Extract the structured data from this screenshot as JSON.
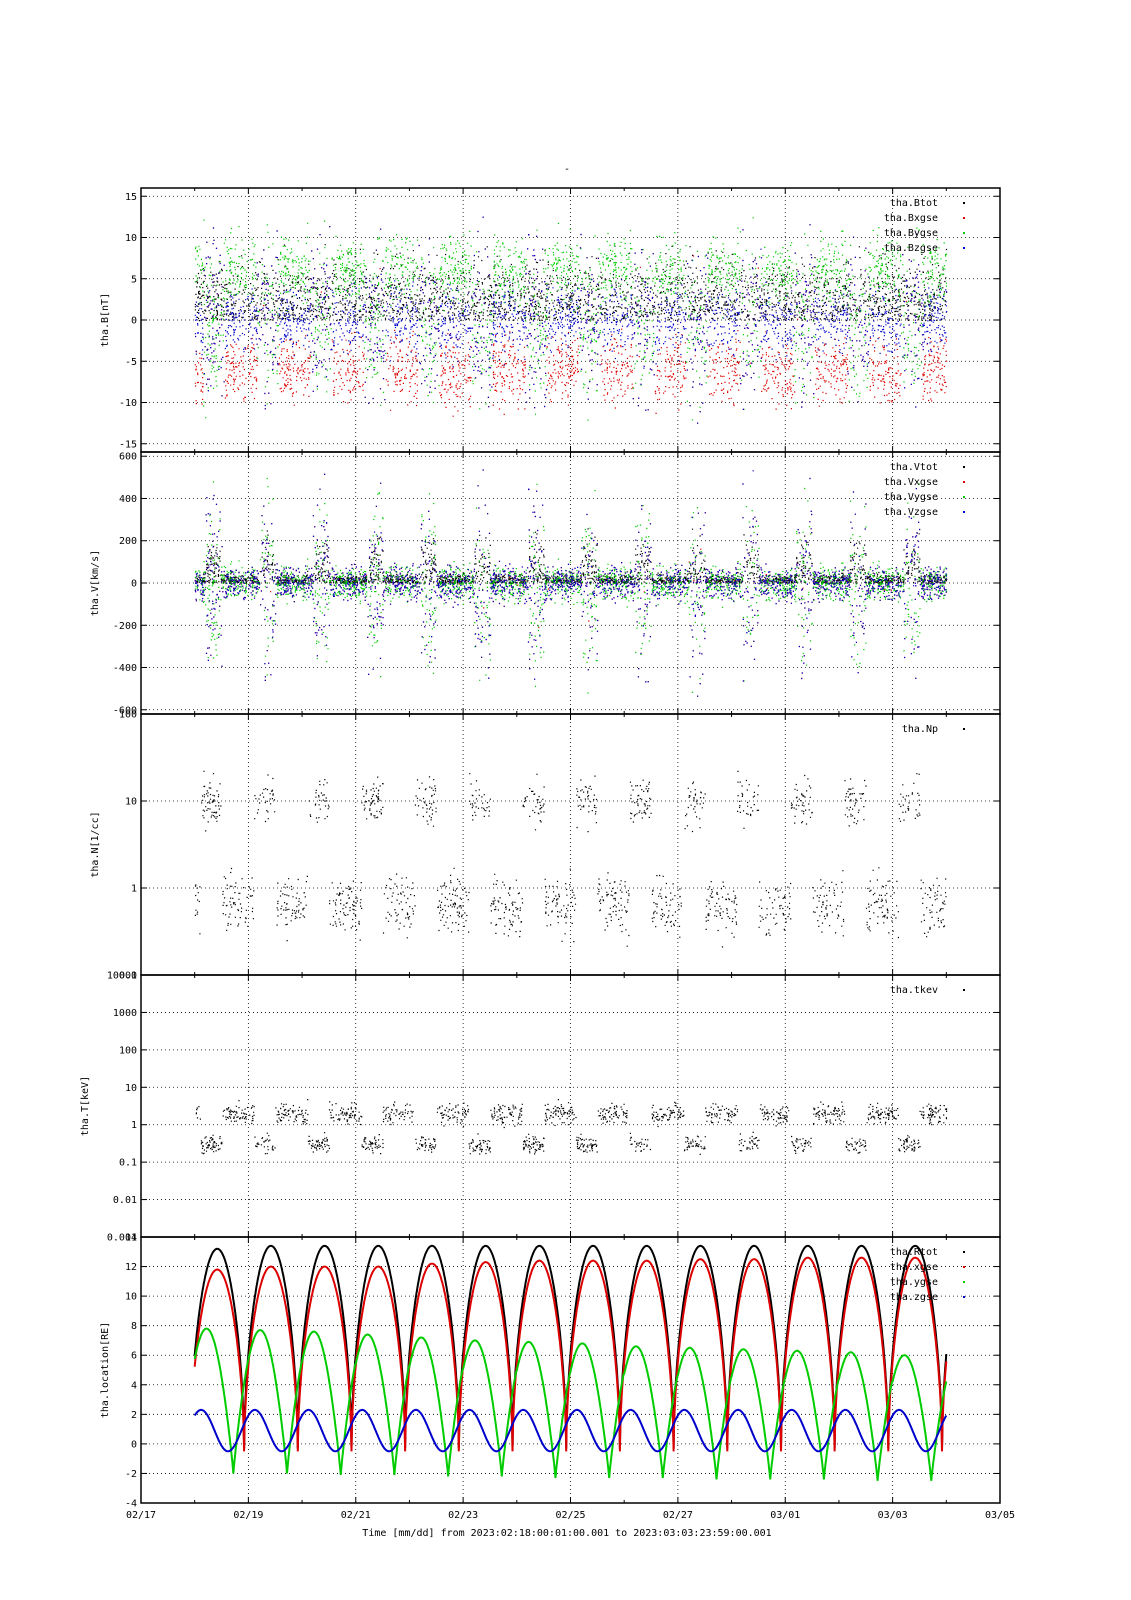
{
  "title": "-",
  "footer": "Time [mm/dd]  from 2023:02:18:00:01:00.001  to  2023:03:03:23:59:00.001",
  "x_ticks": [
    "02/17",
    "02/19",
    "02/21",
    "02/23",
    "02/25",
    "02/27",
    "03/01",
    "03/03",
    "03/05"
  ],
  "colors": {
    "black": "#000000",
    "red": "#dd0000",
    "green": "#00cc00",
    "blue": "#0000cc",
    "grid": "#000000"
  },
  "chart_data": [
    {
      "type": "scatter",
      "ylabel": "tha.B[nT]",
      "ylim": [
        -16,
        16
      ],
      "yscale": "linear",
      "yticks": [
        -15,
        -10,
        -5,
        0,
        5,
        10,
        15
      ],
      "ytick_labels": [
        "-15",
        "-10",
        "-5",
        "0",
        "5",
        "10",
        "15"
      ],
      "legend": [
        "tha.Btot",
        "tha.Bxgse",
        "tha.Bygse",
        "tha.Bzgse"
      ],
      "series_colors": [
        "#000000",
        "#dd0000",
        "#00cc00",
        "#0000cc"
      ]
    },
    {
      "type": "scatter",
      "ylabel": "tha.V[km/s]",
      "ylim": [
        -620,
        620
      ],
      "yscale": "linear",
      "yticks": [
        -600,
        -400,
        -200,
        0,
        200,
        400,
        600
      ],
      "ytick_labels": [
        "-600",
        "-400",
        "-200",
        "0",
        "200",
        "400",
        "600"
      ],
      "legend": [
        "tha.Vtot",
        "tha.Vxgse",
        "tha.Vygse",
        "tha.Vzgse"
      ],
      "series_colors": [
        "#000000",
        "#dd0000",
        "#00cc00",
        "#0000cc"
      ]
    },
    {
      "type": "scatter",
      "ylabel": "tha.N[1/cc]",
      "ylim": [
        0.1,
        100
      ],
      "yscale": "log",
      "yticks": [
        0.1,
        1,
        10,
        100
      ],
      "ytick_labels": [
        "0.1",
        "1",
        "10",
        "100"
      ],
      "legend": [
        "tha.Np"
      ],
      "series_colors": [
        "#000000"
      ]
    },
    {
      "type": "scatter",
      "ylabel": "tha.T[keV]",
      "ylim": [
        0.001,
        10000
      ],
      "yscale": "log",
      "yticks": [
        0.001,
        0.01,
        0.1,
        1,
        10,
        100,
        1000,
        10000
      ],
      "ytick_labels": [
        "0.001",
        "0.01",
        "0.1",
        "1",
        "10",
        "100",
        "1000",
        "10000"
      ],
      "legend": [
        "tha.tkev"
      ],
      "series_colors": [
        "#000000"
      ]
    },
    {
      "type": "line",
      "ylabel": "tha.location[RE]",
      "ylim": [
        -4,
        14
      ],
      "yscale": "linear",
      "yticks": [
        -4,
        -2,
        0,
        2,
        4,
        6,
        8,
        10,
        12,
        14
      ],
      "ytick_labels": [
        "-4",
        "-2",
        "0",
        "2",
        "4",
        "6",
        "8",
        "10",
        "12",
        "14"
      ],
      "legend": [
        "tha.Rtot",
        "tha.xgse",
        "tha.ygse",
        "tha.zgse"
      ],
      "series_colors": [
        "#000000",
        "#dd0000",
        "#00cc00",
        "#0000cc"
      ],
      "orbit_period_days": 1.0,
      "peaks": {
        "Rtot": [
          13.2,
          13.4,
          13.4,
          13.4,
          13.4,
          13.4,
          13.4,
          13.4,
          13.4,
          13.4,
          13.4,
          13.4,
          13.4,
          13.4
        ],
        "xgse": [
          11.8,
          12.0,
          12.0,
          12.0,
          12.2,
          12.3,
          12.4,
          12.4,
          12.4,
          12.5,
          12.5,
          12.6,
          12.6,
          12.6
        ],
        "ygse": [
          7.8,
          7.7,
          7.6,
          7.4,
          7.2,
          7.0,
          6.9,
          6.8,
          6.6,
          6.5,
          6.4,
          6.3,
          6.2,
          6.0
        ],
        "zgse": [
          2.3,
          2.3,
          2.3,
          2.3,
          2.3,
          2.3,
          2.3,
          2.3,
          2.3,
          2.3,
          2.3,
          2.3,
          2.3,
          2.3
        ]
      },
      "minima": {
        "Rtot": [
          -0.3,
          -0.3,
          -0.3,
          -0.3,
          -0.3,
          -0.3,
          -0.3,
          -0.3,
          -0.3,
          -0.3,
          -0.3,
          -0.3,
          -0.3,
          -0.3
        ],
        "xgse": [
          -0.5,
          -0.5,
          -0.5,
          -0.5,
          -0.5,
          -0.5,
          -0.5,
          -0.5,
          -0.5,
          -0.5,
          -0.5,
          -0.5,
          -0.5,
          -0.5
        ],
        "ygse": [
          -2.0,
          -2.0,
          -2.1,
          -2.1,
          -2.2,
          -2.2,
          -2.3,
          -2.3,
          -2.3,
          -2.4,
          -2.4,
          -2.4,
          -2.5,
          -2.5
        ],
        "zgse": [
          -0.5,
          -0.5,
          -0.5,
          -0.5,
          -0.5,
          -0.5,
          -0.5,
          -0.5,
          -0.5,
          -0.5,
          -0.5,
          -0.5,
          -0.5,
          -0.5
        ]
      }
    }
  ]
}
